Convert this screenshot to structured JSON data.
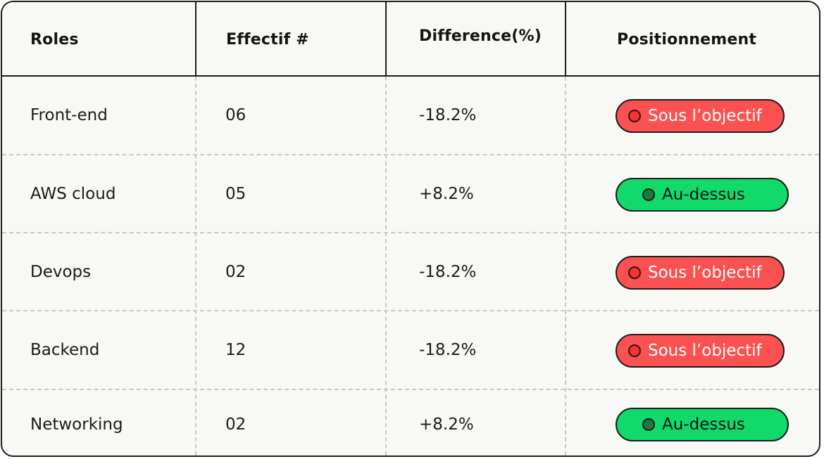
{
  "table": {
    "headers": [
      "Roles",
      "Effectif #",
      "Difference(%)",
      "Positionnement"
    ],
    "rows": [
      {
        "role": "Front-end",
        "effectif": "06",
        "difference": "-18.2%",
        "status": "Sous l’objectif",
        "status_type": "below"
      },
      {
        "role": "AWS cloud",
        "effectif": "05",
        "difference": "+8.2%",
        "status": "Au-dessus",
        "status_type": "above"
      },
      {
        "role": "Devops",
        "effectif": "02",
        "difference": "-18.2%",
        "status": "Sous l’objectif",
        "status_type": "below"
      },
      {
        "role": "Backend",
        "effectif": "12",
        "difference": "-18.2%",
        "status": "Sous l’objectif",
        "status_type": "below"
      },
      {
        "role": "Networking",
        "effectif": "02",
        "difference": "+8.2%",
        "status": "Au-dessus",
        "status_type": "above"
      }
    ]
  },
  "colors": {
    "below_pill": "#fb5151",
    "above_pill": "#11d96a",
    "card_background": "#f8f8f4",
    "border": "#1d1d1d"
  },
  "icons": {
    "below": "red-status-dot-icon",
    "above": "green-status-dot-icon"
  }
}
